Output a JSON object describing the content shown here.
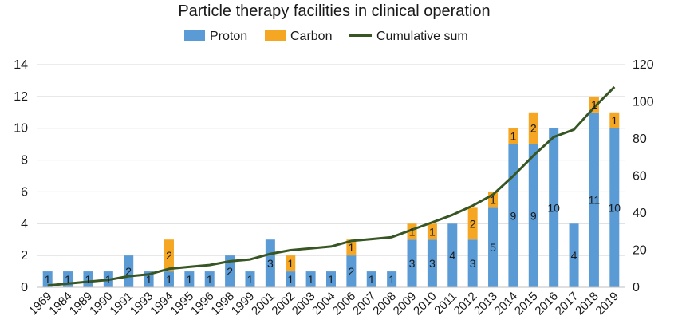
{
  "chart_data": {
    "type": "bar",
    "stacked": true,
    "title": "Particle therapy facilities in clinical operation",
    "categories": [
      "1969",
      "1984",
      "1989",
      "1990",
      "1991",
      "1993",
      "1994",
      "1995",
      "1996",
      "1998",
      "1999",
      "2001",
      "2002",
      "2003",
      "2004",
      "2006",
      "2007",
      "2008",
      "2009",
      "2010",
      "2011",
      "2012",
      "2013",
      "2014",
      "2015",
      "2016",
      "2017",
      "2018",
      "2019"
    ],
    "series": [
      {
        "name": "Proton",
        "type": "bar",
        "axis": "left",
        "color": "#5b9bd5",
        "values": [
          1,
          1,
          1,
          1,
          2,
          1,
          1,
          1,
          1,
          2,
          1,
          3,
          1,
          1,
          1,
          2,
          1,
          1,
          3,
          3,
          4,
          3,
          5,
          9,
          9,
          10,
          4,
          11,
          10
        ]
      },
      {
        "name": "Carbon",
        "type": "bar",
        "axis": "left",
        "color": "#f5a623",
        "values": [
          0,
          0,
          0,
          0,
          0,
          0,
          2,
          0,
          0,
          0,
          0,
          0,
          1,
          0,
          0,
          1,
          0,
          0,
          1,
          1,
          0,
          2,
          1,
          1,
          2,
          0,
          0,
          1,
          1
        ]
      },
      {
        "name": "Cumulative sum",
        "type": "line",
        "axis": "right",
        "color": "#375623",
        "values": [
          1,
          2,
          3,
          4,
          6,
          7,
          10,
          11,
          12,
          14,
          15,
          18,
          20,
          21,
          22,
          25,
          26,
          27,
          31,
          35,
          39,
          44,
          50,
          60,
          71,
          81,
          85,
          97,
          108
        ]
      }
    ],
    "y_left": {
      "min": 0,
      "max": 14,
      "ticks": [
        0,
        2,
        4,
        6,
        8,
        10,
        12,
        14
      ]
    },
    "y_right": {
      "min": 0,
      "max": 120,
      "ticks": [
        0,
        20,
        40,
        60,
        80,
        100,
        120
      ]
    },
    "legend_position": "top",
    "grid": true
  }
}
